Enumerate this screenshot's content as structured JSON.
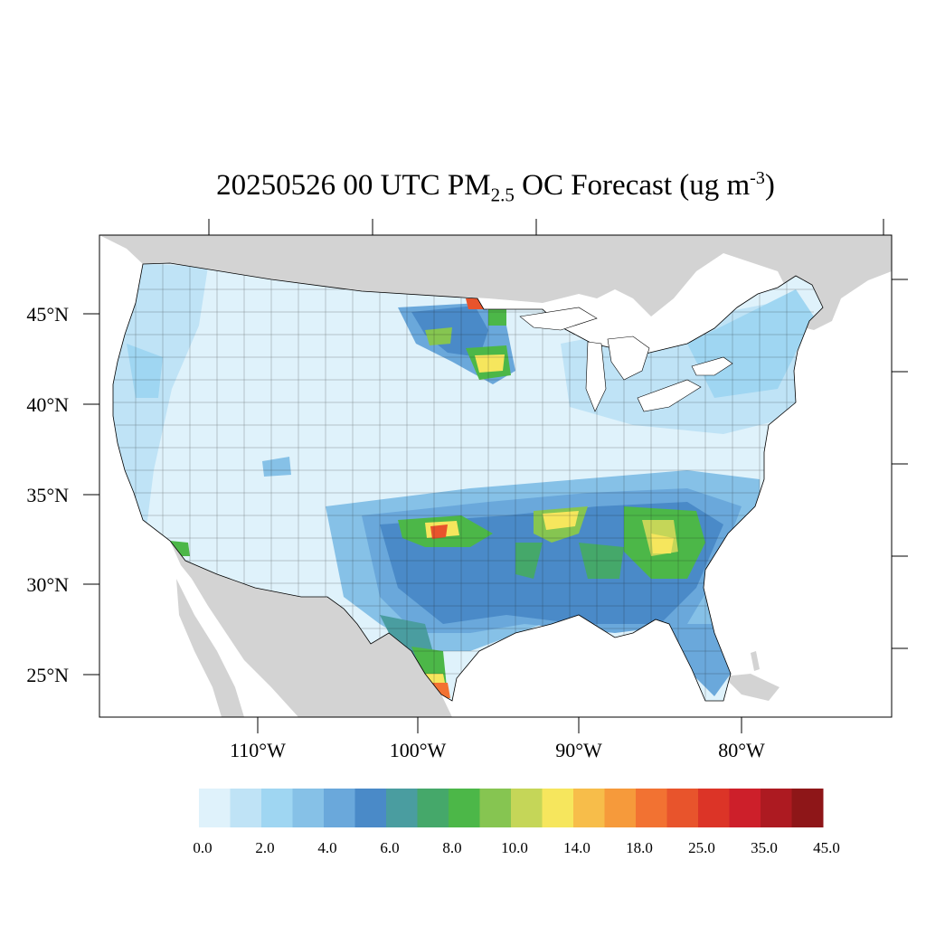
{
  "map": {
    "title_main": "20250526 00 UTC PM",
    "title_sub": "2.5",
    "title_mid": " OC Forecast (ug m",
    "title_sup": "-3",
    "title_end": ")",
    "lat_labels": [
      "45°N",
      "40°N",
      "35°N",
      "30°N",
      "25°N"
    ],
    "lon_labels": [
      "110°W",
      "100°W",
      "90°W",
      "80°W"
    ],
    "land_color_outside": "#d3d3d3",
    "water_color": "#ffffff"
  },
  "colorbar": {
    "colors": [
      "#dff2fb",
      "#bfe3f6",
      "#9fd6f2",
      "#86c1e7",
      "#6aa8db",
      "#4a8ac8",
      "#4a9da0",
      "#45a86a",
      "#4cb748",
      "#86c551",
      "#c5d658",
      "#f6e65d",
      "#f7bd4a",
      "#f69a3b",
      "#f27232",
      "#e8542c",
      "#dc3427",
      "#cd1f2a",
      "#ad1a21",
      "#8e1618"
    ],
    "labels": [
      "0.0",
      "2.0",
      "4.0",
      "6.0",
      "8.0",
      "10.0",
      "14.0",
      "18.0",
      "25.0",
      "35.0",
      "45.0"
    ]
  }
}
